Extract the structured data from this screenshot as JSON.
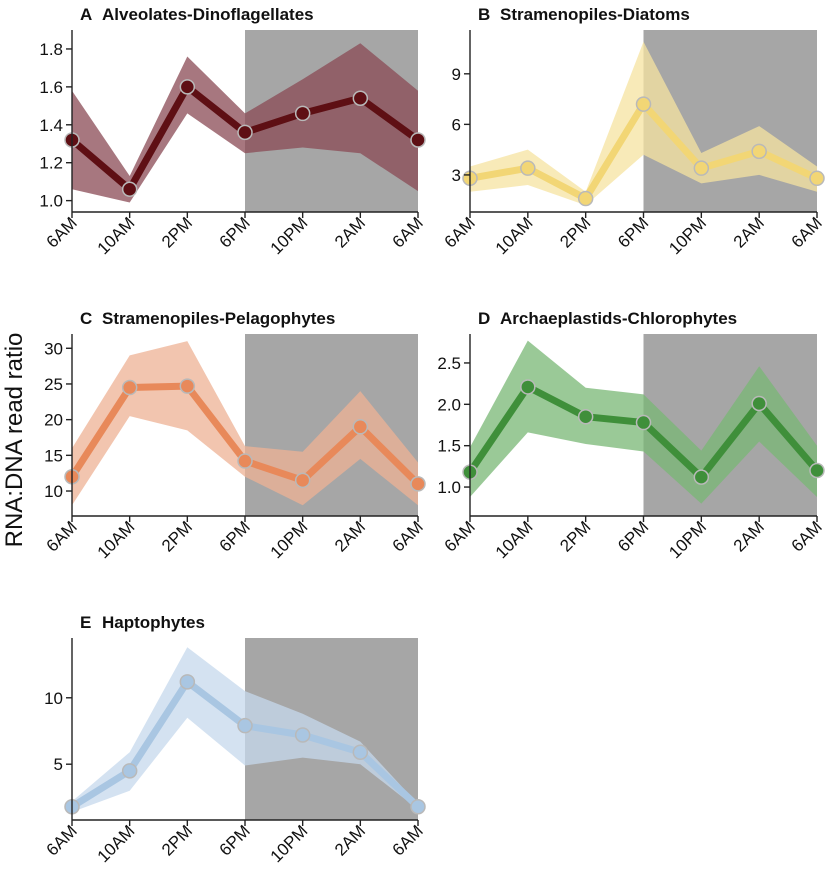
{
  "figure": {
    "ylabel": "RNA:DNA read ratio",
    "x_categories": [
      "6AM",
      "10AM",
      "2PM",
      "6PM",
      "10PM",
      "2AM",
      "6AM"
    ]
  },
  "chart_data": [
    {
      "type": "line",
      "letter": "A",
      "name": "Alveolates-Dinoflagellates",
      "title": "Alveolates-Dinoflagellates",
      "color": "#5e0f14",
      "band_color": "#8a4a54",
      "categories": [
        "6AM",
        "10AM",
        "2PM",
        "6PM",
        "10PM",
        "2AM",
        "6AM"
      ],
      "values": [
        1.32,
        1.06,
        1.6,
        1.36,
        1.46,
        1.54,
        1.32
      ],
      "lower": [
        1.06,
        0.99,
        1.46,
        1.25,
        1.28,
        1.25,
        1.05
      ],
      "upper": [
        1.58,
        1.13,
        1.76,
        1.46,
        1.64,
        1.83,
        1.58
      ],
      "ylim": [
        0.94,
        1.9
      ],
      "yticks": [
        1.0,
        1.2,
        1.4,
        1.6,
        1.8
      ],
      "ytick_labels": [
        "1.0",
        "1.2",
        "1.4",
        "1.6",
        "1.8"
      ],
      "night_shading": [
        "6PM",
        "6AM"
      ]
    },
    {
      "type": "line",
      "letter": "B",
      "name": "Stramenopiles-Diatoms",
      "title": "Stramenopiles-Diatoms",
      "color": "#f2d675",
      "band_color": "#f5e3a0",
      "categories": [
        "6AM",
        "10AM",
        "2PM",
        "6PM",
        "10PM",
        "2AM",
        "6AM"
      ],
      "values": [
        2.8,
        3.4,
        1.6,
        7.2,
        3.4,
        4.4,
        2.8
      ],
      "lower": [
        2.0,
        2.4,
        1.2,
        4.2,
        2.5,
        3.0,
        2.0
      ],
      "upper": [
        3.5,
        4.5,
        2.0,
        10.9,
        4.3,
        5.9,
        3.5
      ],
      "ylim": [
        0.8,
        11.6
      ],
      "yticks": [
        3,
        6,
        9
      ],
      "ytick_labels": [
        "3",
        "6",
        "9"
      ],
      "night_shading": [
        "6PM",
        "6AM"
      ]
    },
    {
      "type": "line",
      "letter": "C",
      "name": "Stramenopiles-Pelagophytes",
      "title": "Stramenopiles-Pelagophytes",
      "color": "#e8895a",
      "band_color": "#eeb294",
      "categories": [
        "6AM",
        "10AM",
        "2PM",
        "6PM",
        "10PM",
        "2AM",
        "6AM"
      ],
      "values": [
        12.0,
        24.5,
        24.7,
        14.2,
        11.5,
        19.0,
        11.0
      ],
      "lower": [
        8.0,
        20.5,
        18.5,
        12.0,
        8.0,
        14.5,
        8.0
      ],
      "upper": [
        16.0,
        29.0,
        31.0,
        16.3,
        15.5,
        24.0,
        14.0
      ],
      "ylim": [
        6.5,
        32
      ],
      "yticks": [
        10,
        15,
        20,
        25,
        30
      ],
      "ytick_labels": [
        "10",
        "15",
        "20",
        "25",
        "30"
      ],
      "night_shading": [
        "6PM",
        "6AM"
      ]
    },
    {
      "type": "line",
      "letter": "D",
      "name": "Archaeplastids-Chlorophytes",
      "title": "Archaeplastids-Chlorophytes",
      "color": "#3f8f3a",
      "band_color": "#78b774",
      "categories": [
        "6AM",
        "10AM",
        "2PM",
        "6PM",
        "10PM",
        "2AM",
        "6AM"
      ],
      "values": [
        1.18,
        2.21,
        1.85,
        1.78,
        1.12,
        2.01,
        1.2
      ],
      "lower": [
        0.88,
        1.66,
        1.52,
        1.43,
        0.8,
        1.55,
        0.88
      ],
      "upper": [
        1.48,
        2.77,
        2.2,
        2.12,
        1.44,
        2.46,
        1.5
      ],
      "ylim": [
        0.65,
        2.85
      ],
      "yticks": [
        1.0,
        1.5,
        2.0,
        2.5
      ],
      "ytick_labels": [
        "1.0",
        "1.5",
        "2.0",
        "2.5"
      ],
      "night_shading": [
        "6PM",
        "6AM"
      ]
    },
    {
      "type": "line",
      "letter": "E",
      "name": "Haptophytes",
      "title": "Haptophytes",
      "color": "#a9c6e2",
      "band_color": "#c6d8ec",
      "categories": [
        "6AM",
        "10AM",
        "2PM",
        "6PM",
        "10PM",
        "2AM",
        "6AM"
      ],
      "values": [
        1.8,
        4.5,
        11.2,
        7.9,
        7.2,
        5.9,
        1.8
      ],
      "lower": [
        1.4,
        3.0,
        8.5,
        4.9,
        5.5,
        5.0,
        1.6
      ],
      "upper": [
        2.2,
        5.9,
        13.8,
        10.5,
        8.8,
        6.7,
        2.0
      ],
      "ylim": [
        0.8,
        14.5
      ],
      "yticks": [
        5,
        10
      ],
      "ytick_labels": [
        "5",
        "10"
      ],
      "night_shading": [
        "6PM",
        "6AM"
      ]
    }
  ]
}
